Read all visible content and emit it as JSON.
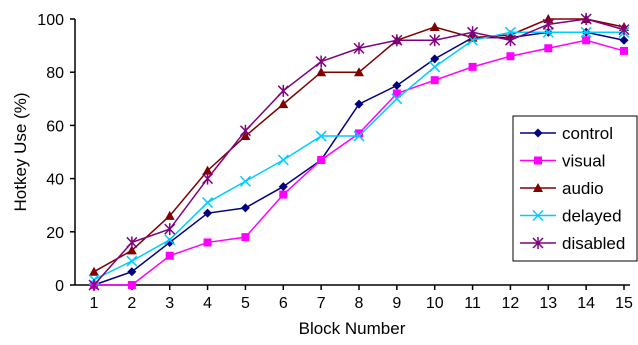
{
  "chart_data": {
    "type": "line",
    "title": "",
    "xlabel": "Block Number",
    "ylabel": "Hotkey Use (%)",
    "x": [
      1,
      2,
      3,
      4,
      5,
      6,
      7,
      8,
      9,
      10,
      11,
      12,
      13,
      14,
      15
    ],
    "xlim": [
      1,
      15
    ],
    "ylim": [
      0,
      100
    ],
    "yticks": [
      0,
      20,
      40,
      60,
      80,
      100
    ],
    "grid": false,
    "legend_position": "right",
    "series": [
      {
        "name": "control",
        "color": "#000080",
        "marker": "diamond",
        "values": [
          0,
          5,
          16,
          27,
          29,
          37,
          47,
          68,
          75,
          85,
          93,
          93,
          95,
          95,
          92
        ]
      },
      {
        "name": "visual",
        "color": "#ff00ff",
        "marker": "square",
        "values": [
          0,
          0,
          11,
          16,
          18,
          34,
          47,
          57,
          72,
          77,
          82,
          86,
          89,
          92,
          88
        ]
      },
      {
        "name": "audio",
        "color": "#800000",
        "marker": "triangle",
        "values": [
          5,
          13,
          26,
          43,
          56,
          68,
          80,
          80,
          92,
          97,
          93,
          94,
          100,
          100,
          97
        ]
      },
      {
        "name": "delayed",
        "color": "#00ccff",
        "marker": "x",
        "values": [
          2,
          9,
          17,
          31,
          39,
          47,
          56,
          56,
          70,
          82,
          92,
          95,
          95,
          95,
          95
        ]
      },
      {
        "name": "disabled",
        "color": "#800080",
        "marker": "asterisk",
        "values": [
          0,
          16,
          21,
          40,
          58,
          73,
          84,
          89,
          92,
          92,
          95,
          92,
          98,
          100,
          96
        ]
      }
    ]
  }
}
